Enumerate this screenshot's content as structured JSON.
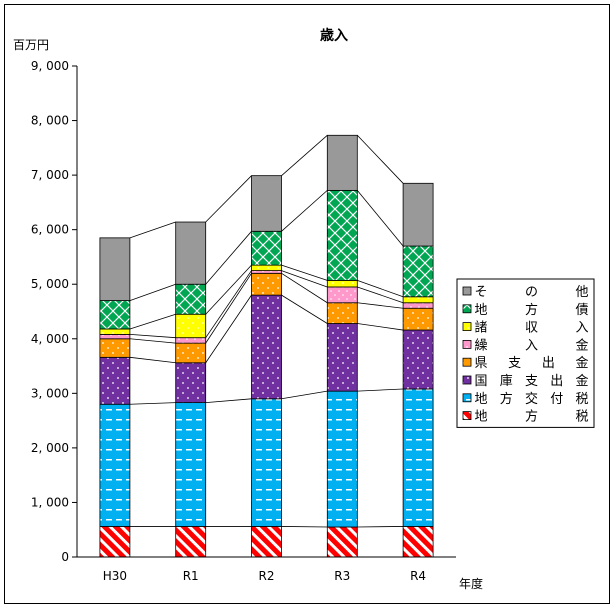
{
  "chart_data": {
    "type": "bar",
    "stacked": true,
    "title": "歳入",
    "ylabel": "百万円",
    "xlabel": "年度",
    "categories": [
      "H30",
      "R1",
      "R2",
      "R3",
      "R4"
    ],
    "ylim": [
      0,
      9000
    ],
    "yticks": [
      "0",
      "1, 000",
      "2, 000",
      "3, 000",
      "4, 000",
      "5, 000",
      "6, 000",
      "7, 000",
      "8, 000",
      "9, 000"
    ],
    "ytick_values": [
      0,
      1000,
      2000,
      3000,
      4000,
      5000,
      6000,
      7000,
      8000,
      9000
    ],
    "grid": false,
    "legend_position": "right",
    "series": [
      {
        "name": "地方税",
        "legend_chars": [
          "地",
          "方",
          "税"
        ],
        "color": "#ff0000",
        "pattern": "diag",
        "values": [
          560,
          560,
          560,
          550,
          560
        ]
      },
      {
        "name": "地方交付税",
        "legend_chars": [
          "地",
          "方",
          "交",
          "付",
          "税"
        ],
        "color": "#00b0f0",
        "pattern": "dash",
        "values": [
          2240,
          2270,
          2340,
          2490,
          2520
        ]
      },
      {
        "name": "国庫支出金",
        "legend_chars": [
          "国",
          "庫",
          "支",
          "出",
          "金"
        ],
        "color": "#7030a0",
        "pattern": "dots",
        "values": [
          860,
          730,
          1900,
          1240,
          1080
        ]
      },
      {
        "name": "県支出金",
        "legend_chars": [
          "県",
          "支",
          "出",
          "金"
        ],
        "color": "#ff9900",
        "pattern": "dots",
        "values": [
          340,
          360,
          400,
          380,
          400
        ]
      },
      {
        "name": "繰入金",
        "legend_chars": [
          "繰",
          "入",
          "金"
        ],
        "color": "#ff99cc",
        "pattern": "dots",
        "values": [
          80,
          100,
          50,
          290,
          100
        ]
      },
      {
        "name": "諸収入",
        "legend_chars": [
          "諸",
          "収",
          "入"
        ],
        "color": "#ffff00",
        "pattern": "dots",
        "values": [
          100,
          430,
          100,
          120,
          110
        ]
      },
      {
        "name": "地方債",
        "legend_chars": [
          "地",
          "方",
          "債"
        ],
        "color": "#00a651",
        "pattern": "diamond",
        "values": [
          520,
          550,
          620,
          1650,
          930
        ]
      },
      {
        "name": "その他",
        "legend_chars": [
          "そ",
          "の",
          "他"
        ],
        "color": "#999999",
        "pattern": "none",
        "values": [
          1150,
          1140,
          1020,
          1010,
          1150
        ]
      }
    ]
  }
}
